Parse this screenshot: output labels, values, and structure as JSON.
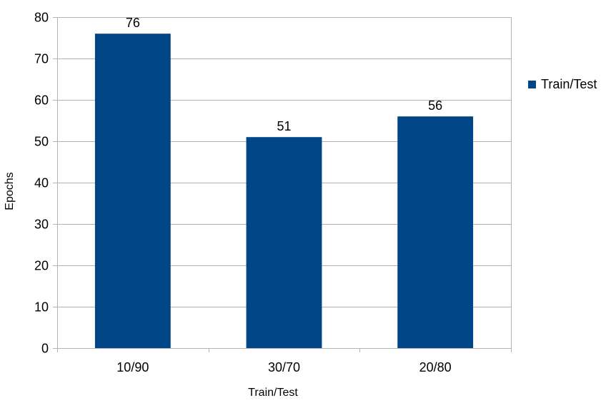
{
  "chart_data": {
    "type": "bar",
    "categories": [
      "10/90",
      "30/70",
      "20/80"
    ],
    "series": [
      {
        "name": "Train/Test",
        "values": [
          76,
          51,
          56
        ],
        "color": "#004586"
      }
    ],
    "title": "",
    "xlabel": "Train/Test",
    "ylabel": "Epochs",
    "ylim": [
      0,
      80
    ],
    "yticks": [
      0,
      10,
      20,
      30,
      40,
      50,
      60,
      70,
      80
    ],
    "grid": true,
    "legend": "right",
    "data_labels": true
  }
}
